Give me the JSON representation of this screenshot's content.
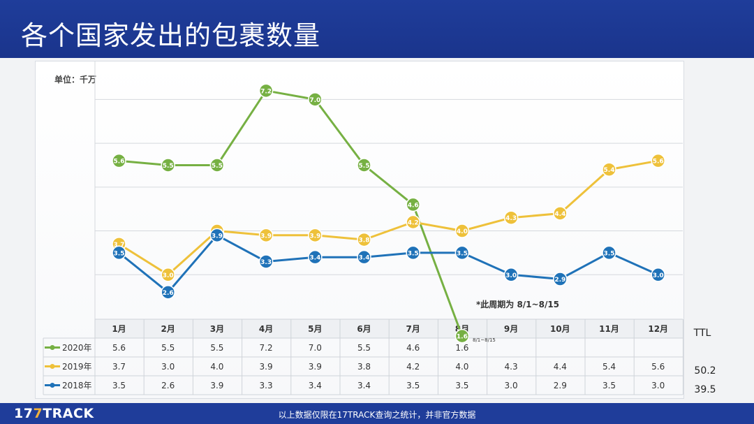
{
  "header": {
    "title": "各个国家发出的包裹数量"
  },
  "footer": {
    "logo_num": "17",
    "logo_mark": "7",
    "logo_text": "TRACK",
    "note": "以上数据仅限在17TRACK查询之统计，并非官方数据"
  },
  "chart_data": {
    "type": "line",
    "unit_label": "单位：千万",
    "categories": [
      "1月",
      "2月",
      "3月",
      "4月",
      "5月",
      "6月",
      "7月",
      "8月",
      "9月",
      "10月",
      "11月",
      "12月"
    ],
    "ylim": [
      2,
      7.5
    ],
    "grid": true,
    "series": [
      {
        "name": "2020年",
        "color": "#76b043",
        "values": [
          5.6,
          5.5,
          5.5,
          7.2,
          7.0,
          5.5,
          4.6,
          1.6,
          null,
          null,
          null,
          null
        ],
        "labels": [
          "5.6",
          "5.5",
          "5.5",
          "7.2",
          "7.0",
          "5.5",
          "4.6",
          "1.6",
          "",
          "",
          "",
          ""
        ],
        "total": ""
      },
      {
        "name": "2019年",
        "color": "#eec13a",
        "values": [
          3.7,
          3.0,
          4.0,
          3.9,
          3.9,
          3.8,
          4.2,
          4.0,
          4.3,
          4.4,
          5.4,
          5.6
        ],
        "labels": [
          "3.7",
          "3.0",
          "4.0",
          "3.9",
          "3.9",
          "3.8",
          "4.2",
          "4.0",
          "4.3",
          "4.4",
          "5.4",
          "5.6"
        ],
        "total": "50.2"
      },
      {
        "name": "2018年",
        "color": "#1f72b8",
        "values": [
          3.5,
          2.6,
          3.9,
          3.3,
          3.4,
          3.4,
          3.5,
          3.5,
          3.0,
          2.9,
          3.5,
          3.0
        ],
        "labels": [
          "3.5",
          "2.6",
          "3.9",
          "3.3",
          "3.4",
          "3.4",
          "3.5",
          "3.5",
          "3.0",
          "2.9",
          "3.5",
          "3.0"
        ],
        "total": "39.5"
      }
    ],
    "table_total_header": "TTL",
    "annotation": "*此周期为 8/1~8/15",
    "table_note": "8/1~8/15"
  }
}
